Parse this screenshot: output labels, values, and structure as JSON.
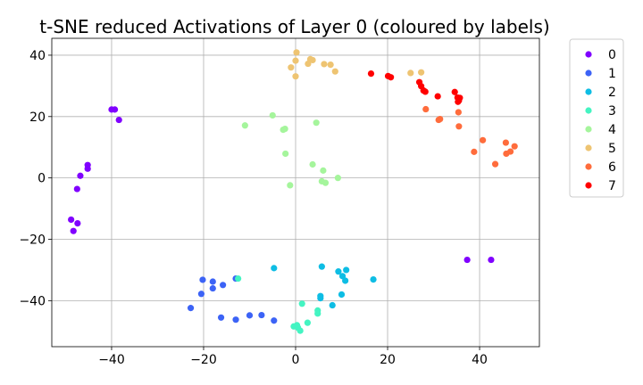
{
  "chart_data": {
    "type": "scatter",
    "title": "t-SNE reduced Activations of Layer 0 (coloured by labels)",
    "xlabel": "",
    "ylabel": "",
    "xlim": [
      -53,
      53
    ],
    "ylim": [
      -55,
      45.5
    ],
    "xticks": [
      -40,
      -20,
      0,
      20,
      40
    ],
    "yticks": [
      -40,
      -20,
      0,
      20,
      40
    ],
    "xtick_labels": [
      "−40",
      "−20",
      "0",
      "20",
      "40"
    ],
    "ytick_labels": [
      "−40",
      "−20",
      "0",
      "20",
      "40"
    ],
    "grid": true,
    "legend_position": "outside-right-top",
    "series": [
      {
        "name": "0",
        "color": "#8000ff",
        "x": [
          -40,
          -39.3,
          -38.4,
          -45.2,
          -45.2,
          -46.8,
          -47.5,
          -48.8,
          -47.4,
          -48.3,
          37.3,
          42.5
        ],
        "y": [
          22.3,
          22.3,
          18.9,
          4.2,
          3.0,
          0.7,
          -3.6,
          -13.6,
          -14.8,
          -17.3,
          -26.7,
          -26.7
        ]
      },
      {
        "name": "1",
        "color": "#3c63f6",
        "x": [
          -20.2,
          -18.0,
          -15.8,
          -18.0,
          -20.5,
          -22.8,
          -16.2,
          -13.0,
          -10.0,
          -7.4,
          -4.7,
          -13.0
        ],
        "y": [
          -33.2,
          -33.8,
          -34.9,
          -36.0,
          -37.8,
          -42.4,
          -45.5,
          -46.2,
          -44.8,
          -44.7,
          -46.5,
          -32.8
        ]
      },
      {
        "name": "2",
        "color": "#0ebde4",
        "x": [
          -4.7,
          5.7,
          9.3,
          10.2,
          10.8,
          11.0,
          16.9,
          10.0,
          5.4,
          5.4,
          8.0
        ],
        "y": [
          -29.4,
          -28.9,
          -30.5,
          -32.0,
          -33.5,
          -30.0,
          -33.1,
          -38.0,
          -38.5,
          -39.2,
          -41.5
        ]
      },
      {
        "name": "3",
        "color": "#44f4c2",
        "x": [
          -12.5,
          1.4,
          4.8,
          4.8,
          2.6,
          -0.4,
          0.5,
          1.0,
          0.3
        ],
        "y": [
          -32.8,
          -41.0,
          -43.2,
          -44.2,
          -47.2,
          -48.4,
          -48.8,
          -49.8,
          -48.0
        ]
      },
      {
        "name": "4",
        "color": "#a5f59c",
        "x": [
          -11.0,
          -5.0,
          -2.3,
          -2.7,
          -2.2,
          4.5,
          -1.2,
          3.7,
          6.0,
          5.7,
          6.5,
          9.2
        ],
        "y": [
          17.1,
          20.4,
          16.0,
          15.7,
          7.9,
          18.0,
          -2.4,
          4.4,
          2.4,
          -1.1,
          -1.6,
          0.0
        ]
      },
      {
        "name": "5",
        "color": "#eec472",
        "x": [
          0.2,
          0.0,
          3.2,
          3.7,
          2.7,
          6.2,
          7.6,
          8.6,
          -1.0,
          0.0,
          25.0,
          27.3
        ],
        "y": [
          40.9,
          38.2,
          38.7,
          38.4,
          37.2,
          37.1,
          36.9,
          34.7,
          36.0,
          33.1,
          34.2,
          34.4
        ]
      },
      {
        "name": "6",
        "color": "#ff6c3c",
        "x": [
          28.3,
          31.1,
          31.4,
          35.4,
          35.5,
          40.7,
          38.8,
          45.7,
          47.6,
          46.7,
          45.8,
          43.4
        ],
        "y": [
          22.4,
          18.9,
          19.2,
          21.4,
          16.8,
          12.3,
          8.5,
          11.5,
          10.3,
          8.6,
          7.9,
          4.5
        ]
      },
      {
        "name": "7",
        "color": "#ff0000",
        "x": [
          16.4,
          20.1,
          20.7,
          26.9,
          27.3,
          27.8,
          28.2,
          30.9,
          34.6,
          35.2,
          35.7,
          35.5,
          35.3
        ],
        "y": [
          34.0,
          33.2,
          32.8,
          31.2,
          29.9,
          28.5,
          28.1,
          26.6,
          28.0,
          26.2,
          26.1,
          25.2,
          24.8
        ]
      }
    ]
  }
}
